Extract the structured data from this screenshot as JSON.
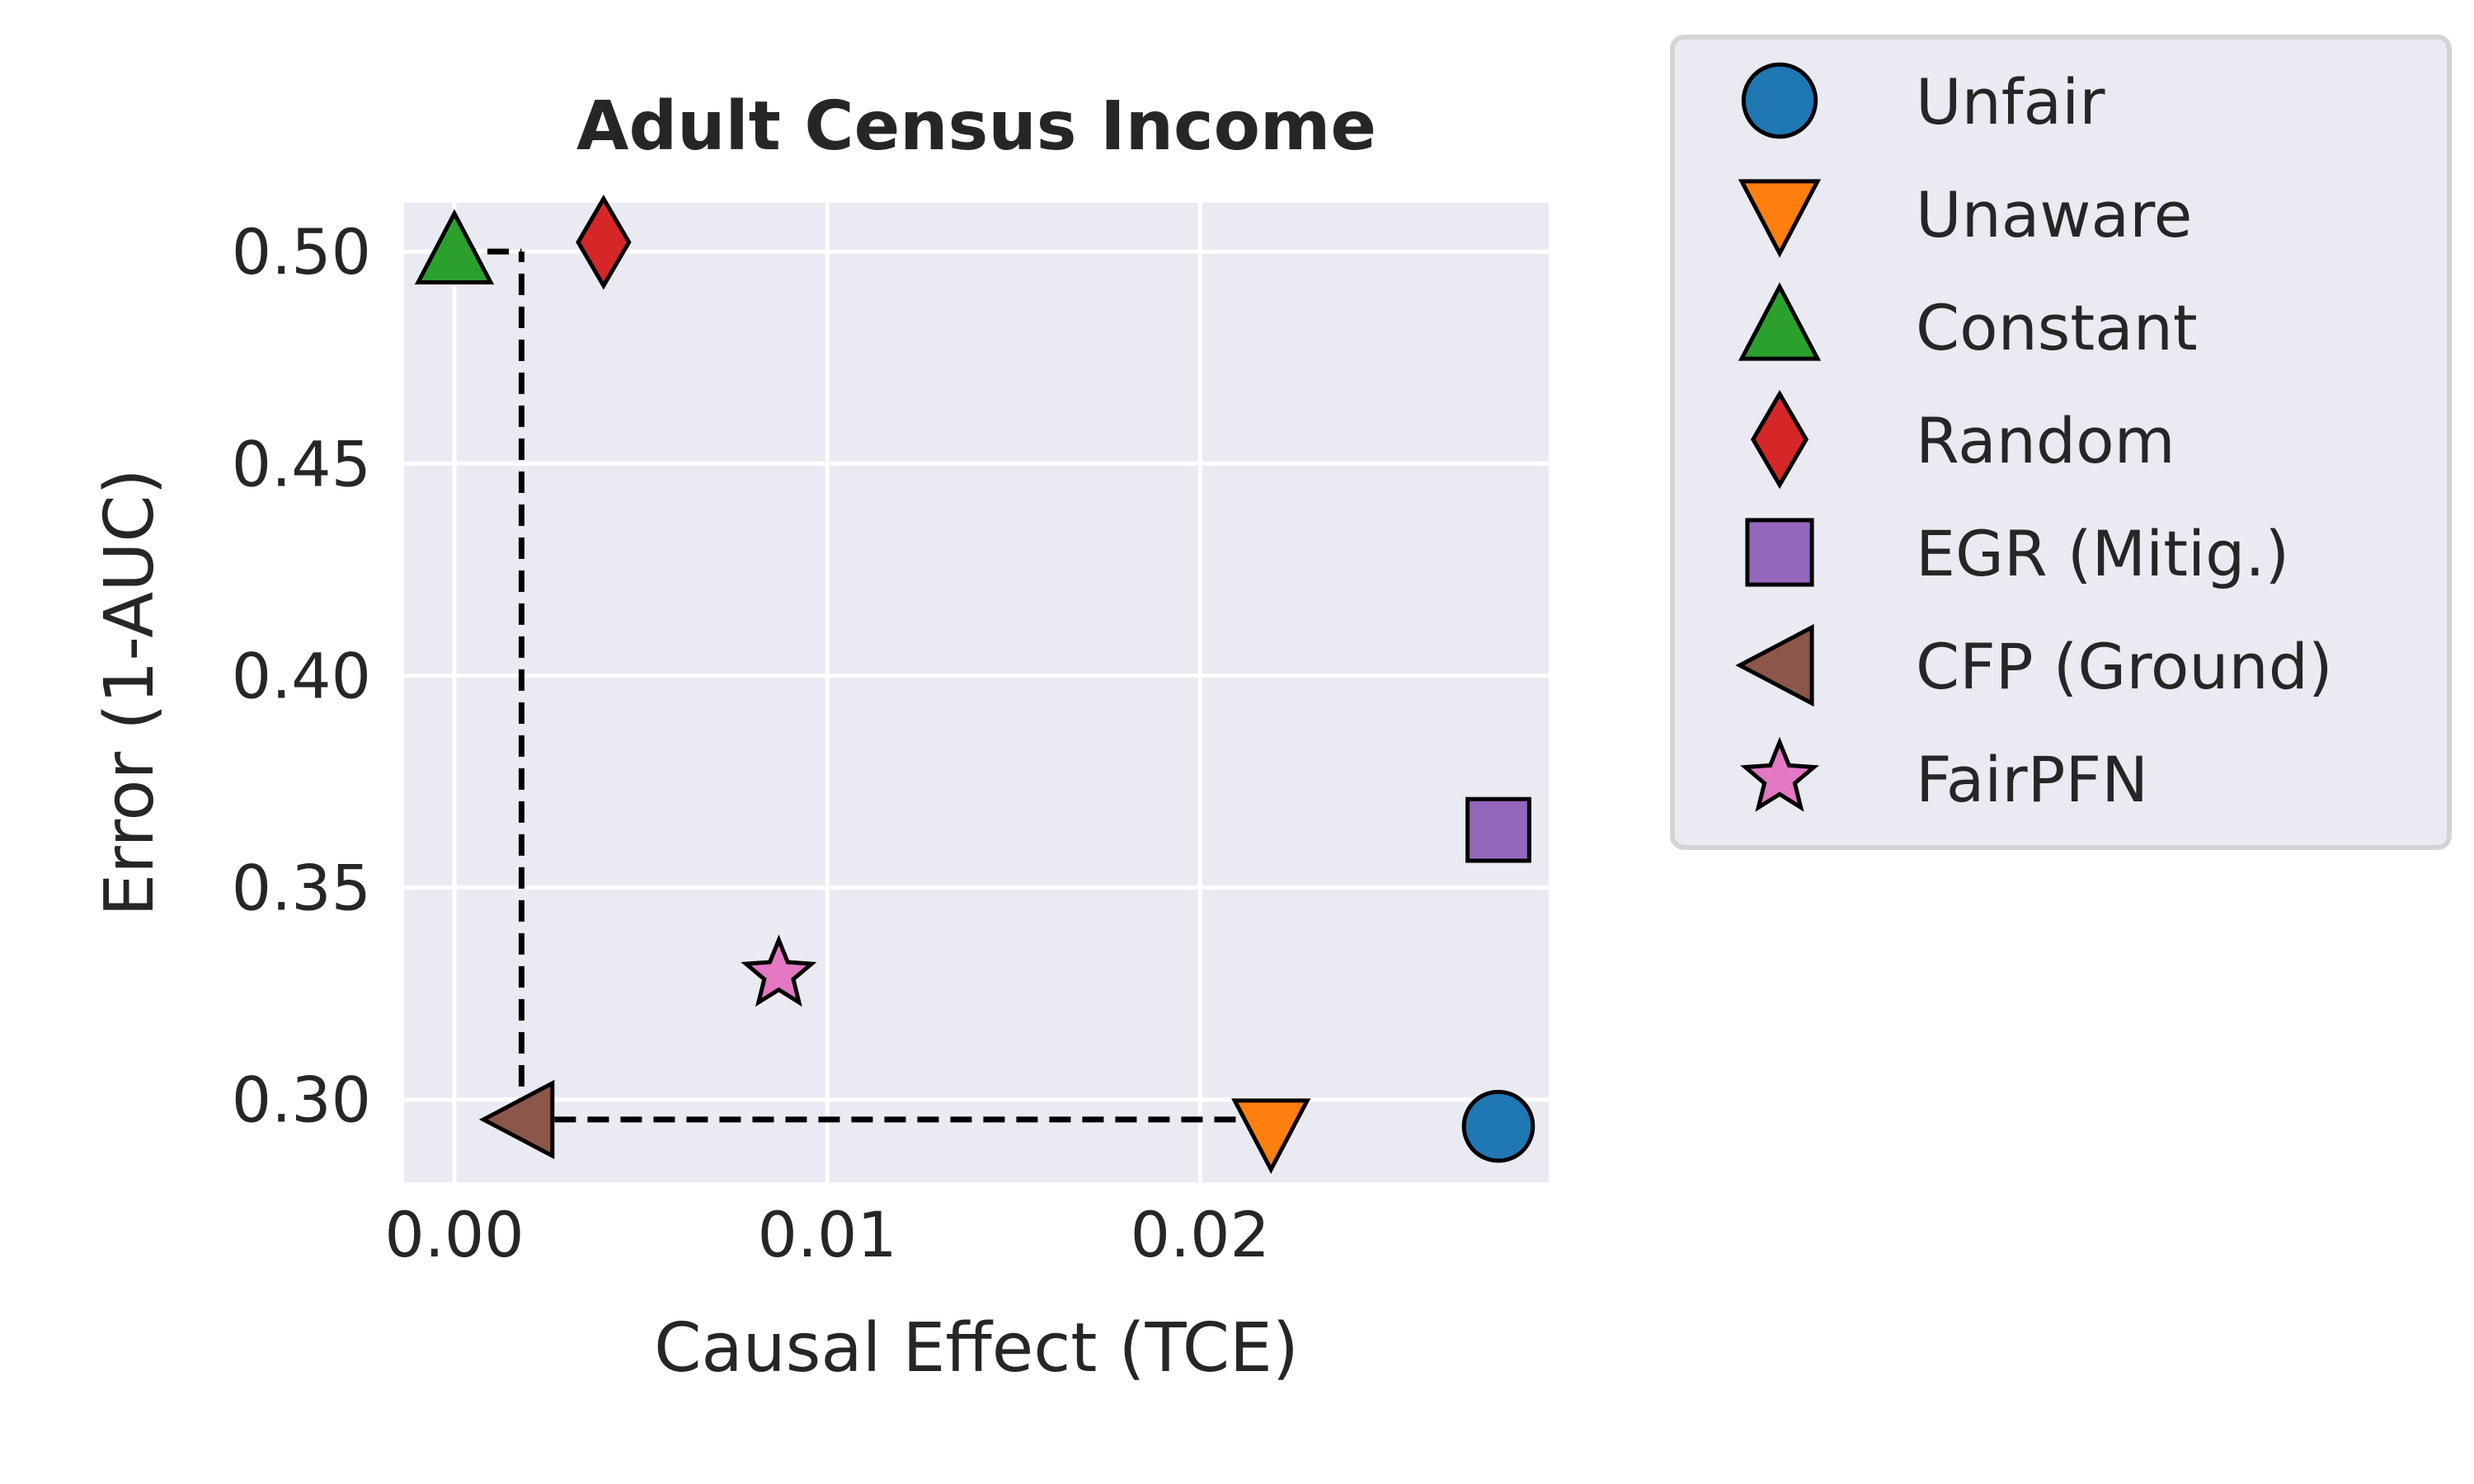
{
  "chart_data": {
    "type": "scatter",
    "title": "Adult Census Income",
    "xlabel": "Causal Effect (TCE)",
    "ylabel": "Error (1-AUC)",
    "xlim": [
      -0.00135,
      0.02935
    ],
    "ylim": [
      0.2805,
      0.5115
    ],
    "xticks": [
      0.0,
      0.01,
      0.02
    ],
    "xtick_labels": [
      "0.00",
      "0.01",
      "0.02"
    ],
    "yticks": [
      0.3,
      0.35,
      0.4,
      0.45,
      0.5
    ],
    "ytick_labels": [
      "0.30",
      "0.35",
      "0.40",
      "0.45",
      "0.50"
    ],
    "grid": true,
    "legend_position": "outside-right",
    "series": [
      {
        "name": "Unfair",
        "marker": "circle",
        "color": "#1f77b4",
        "x": 0.028,
        "y": 0.2937
      },
      {
        "name": "Unaware",
        "marker": "triangle-down",
        "color": "#ff7f0e",
        "x": 0.0219,
        "y": 0.2925
      },
      {
        "name": "Constant",
        "marker": "triangle-up",
        "color": "#2ca02c",
        "x": 0.0,
        "y": 0.5
      },
      {
        "name": "Random",
        "marker": "diamond",
        "color": "#d62728",
        "x": 0.004,
        "y": 0.5022
      },
      {
        "name": "EGR (Mitig.)",
        "marker": "square",
        "color": "#9467bd",
        "x": 0.028,
        "y": 0.3636
      },
      {
        "name": "CFP (Ground)",
        "marker": "triangle-left",
        "color": "#8c564b",
        "x": 0.0018,
        "y": 0.2953
      },
      {
        "name": "FairPFN",
        "marker": "star",
        "color": "#e377c2",
        "x": 0.0087,
        "y": 0.3295
      }
    ],
    "reference_lines": {
      "style": "dashed",
      "color": "#000000",
      "vertical": {
        "x": 0.0018,
        "y_from": 0.2953,
        "y_to": 0.5
      },
      "vertical_cap": {
        "x_from": 0.0,
        "x_to": 0.0018,
        "y": 0.5
      },
      "horizontal": {
        "y": 0.2953,
        "x_from": 0.0018,
        "x_to": 0.0219
      }
    }
  }
}
